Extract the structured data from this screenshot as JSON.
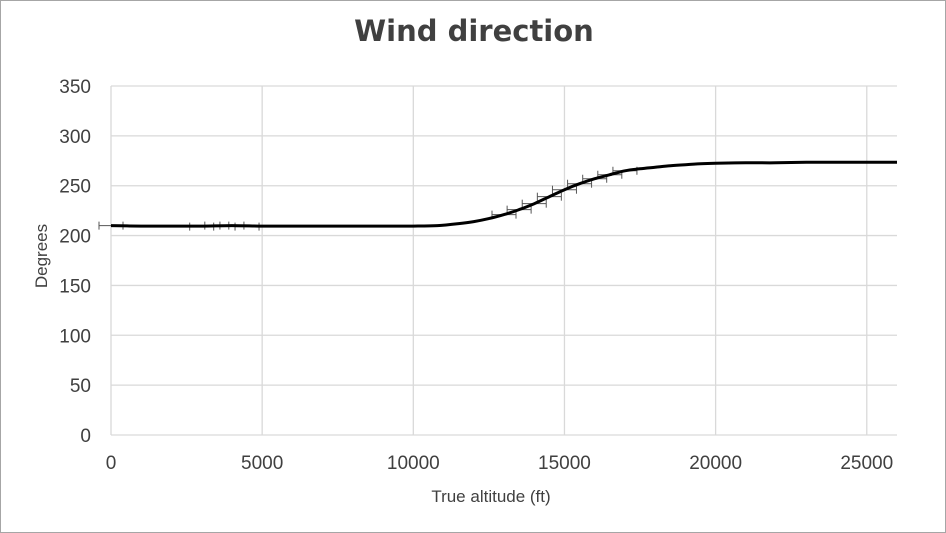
{
  "chart_data": {
    "type": "line",
    "title": "Wind direction",
    "xlabel": "True altitude (ft)",
    "ylabel": "Degrees",
    "xlim": [
      0,
      26000
    ],
    "ylim": [
      0,
      350
    ],
    "x_ticks": [
      0,
      5000,
      10000,
      15000,
      20000,
      25000
    ],
    "y_ticks": [
      0,
      50,
      100,
      150,
      200,
      250,
      300,
      350
    ],
    "grid": true,
    "legend": "none",
    "error_bars": true,
    "line_color": "#000000",
    "gridline_color": "#d9d9d9",
    "series": [
      {
        "x": [
          0,
          1000,
          2000,
          3000,
          4000,
          5000,
          6000,
          7000,
          8000,
          9000,
          10000,
          10800,
          11500,
          12000,
          12500,
          13000,
          13500,
          14000,
          14500,
          15000,
          15500,
          16000,
          16500,
          17000,
          17500,
          18000,
          18500,
          19000,
          19500,
          20000,
          21000,
          22000,
          23000,
          24000,
          25000,
          26000
        ],
        "y": [
          210,
          209.5,
          209.5,
          209.5,
          210,
          209.5,
          209.5,
          209.5,
          209.5,
          209.5,
          209.5,
          210,
          212,
          214,
          217,
          221,
          226,
          232,
          239,
          246,
          252,
          257,
          261,
          265,
          267,
          268.5,
          270,
          271,
          272,
          272.5,
          273,
          273,
          273.5,
          273.5,
          273.5,
          273.5
        ],
        "err_x": [
          0,
          3000,
          3500,
          4000,
          4500,
          13000,
          13500,
          14000,
          14500,
          15000,
          15500,
          16000,
          16500,
          17000
        ],
        "err_y": [
          210,
          209,
          210,
          210,
          209,
          221,
          226,
          232,
          239,
          246,
          252,
          257,
          261,
          265
        ]
      }
    ]
  }
}
